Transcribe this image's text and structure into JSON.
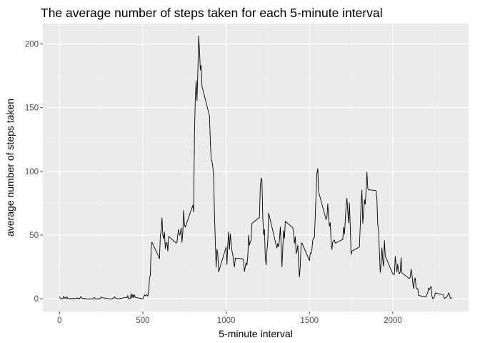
{
  "chart_data": {
    "type": "line",
    "title": "The average number of steps taken for each 5-minute interval",
    "xlabel": "5-minute interval",
    "ylabel": "average number of steps taken",
    "xlim": [
      -100,
      2455
    ],
    "ylim": [
      -10,
      216
    ],
    "x_ticks": [
      0,
      500,
      1000,
      1500,
      2000
    ],
    "x_tick_labels": [
      "0",
      "500",
      "1000",
      "1500",
      "2000"
    ],
    "y_ticks": [
      0,
      50,
      100,
      150,
      200
    ],
    "y_tick_labels": [
      "0",
      "50",
      "100",
      "150",
      "200"
    ],
    "grid": true,
    "colors": {
      "panel": "#ebebeb",
      "grid_major": "#ffffff",
      "line": "#000000"
    },
    "series": [
      {
        "points": [
          [
            0,
            1.7
          ],
          [
            5,
            0.3
          ],
          [
            10,
            0.1
          ],
          [
            15,
            0.2
          ],
          [
            20,
            0.1
          ],
          [
            25,
            2.1
          ],
          [
            30,
            0.5
          ],
          [
            35,
            0.9
          ],
          [
            40,
            0
          ],
          [
            45,
            1.5
          ],
          [
            50,
            0.3
          ],
          [
            55,
            0.1
          ],
          [
            100,
            0.3
          ],
          [
            105,
            0.7
          ],
          [
            110,
            0.2
          ],
          [
            115,
            0.3
          ],
          [
            120,
            0
          ],
          [
            125,
            1.1
          ],
          [
            130,
            1.8
          ],
          [
            135,
            0.2
          ],
          [
            140,
            0.2
          ],
          [
            145,
            0.4
          ],
          [
            150,
            0.3
          ],
          [
            155,
            0
          ],
          [
            200,
            0
          ],
          [
            205,
            0
          ],
          [
            210,
            1.1
          ],
          [
            215,
            0
          ],
          [
            220,
            0
          ],
          [
            225,
            0.1
          ],
          [
            230,
            0
          ],
          [
            235,
            0.2
          ],
          [
            240,
            0
          ],
          [
            245,
            0
          ],
          [
            250,
            1.5
          ],
          [
            255,
            0.9
          ],
          [
            300,
            0
          ],
          [
            305,
            0
          ],
          [
            310,
            0
          ],
          [
            315,
            0
          ],
          [
            320,
            0.2
          ],
          [
            325,
            0.6
          ],
          [
            330,
            1.6
          ],
          [
            335,
            0.6
          ],
          [
            340,
            0.5
          ],
          [
            345,
            0.1
          ],
          [
            350,
            0
          ],
          [
            355,
            0
          ],
          [
            400,
            1.2
          ],
          [
            405,
            0.9
          ],
          [
            410,
            2.6
          ],
          [
            415,
            0
          ],
          [
            420,
            0.3
          ],
          [
            425,
            0.4
          ],
          [
            430,
            4.1
          ],
          [
            435,
            0.7
          ],
          [
            440,
            3.5
          ],
          [
            445,
            0.8
          ],
          [
            450,
            3.1
          ],
          [
            455,
            1.1
          ],
          [
            500,
            0
          ],
          [
            505,
            1.6
          ],
          [
            510,
            3
          ],
          [
            515,
            2.2
          ],
          [
            520,
            3.3
          ],
          [
            525,
            3
          ],
          [
            530,
            2.1
          ],
          [
            535,
            6.1
          ],
          [
            540,
            16
          ],
          [
            545,
            18.3
          ],
          [
            550,
            39.5
          ],
          [
            555,
            44.5
          ],
          [
            600,
            31.5
          ],
          [
            605,
            49.3
          ],
          [
            610,
            53.8
          ],
          [
            615,
            63.5
          ],
          [
            620,
            50
          ],
          [
            625,
            47.1
          ],
          [
            630,
            52.2
          ],
          [
            635,
            39.3
          ],
          [
            640,
            44
          ],
          [
            645,
            44.2
          ],
          [
            650,
            37.4
          ],
          [
            655,
            49
          ],
          [
            700,
            43.8
          ],
          [
            705,
            44.4
          ],
          [
            710,
            50.5
          ],
          [
            715,
            54.5
          ],
          [
            720,
            49.9
          ],
          [
            725,
            50.9
          ],
          [
            730,
            55.7
          ],
          [
            735,
            44.3
          ],
          [
            740,
            52.3
          ],
          [
            745,
            69.5
          ],
          [
            750,
            57.8
          ],
          [
            755,
            56.2
          ],
          [
            800,
            73.4
          ],
          [
            805,
            68.2
          ],
          [
            810,
            129.4
          ],
          [
            815,
            157.5
          ],
          [
            820,
            171.2
          ],
          [
            825,
            155.4
          ],
          [
            830,
            177.3
          ],
          [
            835,
            206.2
          ],
          [
            840,
            195.9
          ],
          [
            845,
            179.6
          ],
          [
            850,
            183.4
          ],
          [
            855,
            167
          ],
          [
            900,
            143.5
          ],
          [
            905,
            124
          ],
          [
            910,
            109.1
          ],
          [
            915,
            108.1
          ],
          [
            920,
            103.7
          ],
          [
            925,
            95.9
          ],
          [
            930,
            66.2
          ],
          [
            935,
            45.2
          ],
          [
            940,
            24.8
          ],
          [
            945,
            38.8
          ],
          [
            950,
            34.98
          ],
          [
            955,
            21.1
          ],
          [
            1000,
            40.6
          ],
          [
            1005,
            26.98
          ],
          [
            1010,
            42.4
          ],
          [
            1015,
            52.7
          ],
          [
            1020,
            38.9
          ],
          [
            1025,
            50.8
          ],
          [
            1030,
            44.3
          ],
          [
            1035,
            37.4
          ],
          [
            1040,
            34.7
          ],
          [
            1045,
            28.3
          ],
          [
            1050,
            25.1
          ],
          [
            1055,
            31.9
          ],
          [
            1100,
            31.4
          ],
          [
            1105,
            29.7
          ],
          [
            1110,
            21.3
          ],
          [
            1115,
            25.5
          ],
          [
            1120,
            28.4
          ],
          [
            1125,
            26.5
          ],
          [
            1130,
            33.4
          ],
          [
            1135,
            49.98
          ],
          [
            1140,
            42
          ],
          [
            1145,
            44.6
          ],
          [
            1150,
            46
          ],
          [
            1155,
            59.2
          ],
          [
            1200,
            63.9
          ],
          [
            1205,
            87.7
          ],
          [
            1210,
            94.8
          ],
          [
            1215,
            92.8
          ],
          [
            1220,
            63.4
          ],
          [
            1225,
            50.2
          ],
          [
            1230,
            54.5
          ],
          [
            1235,
            32.4
          ],
          [
            1240,
            26.5
          ],
          [
            1245,
            37.7
          ],
          [
            1250,
            45.1
          ],
          [
            1255,
            67.3
          ],
          [
            1300,
            42.3
          ],
          [
            1305,
            39.9
          ],
          [
            1310,
            43.3
          ],
          [
            1315,
            40.98
          ],
          [
            1320,
            46.2
          ],
          [
            1325,
            56.4
          ],
          [
            1330,
            42.8
          ],
          [
            1335,
            25.1
          ],
          [
            1340,
            39.97
          ],
          [
            1345,
            53.5
          ],
          [
            1350,
            47.3
          ],
          [
            1355,
            60.8
          ],
          [
            1400,
            55.8
          ],
          [
            1405,
            51.96
          ],
          [
            1410,
            43.6
          ],
          [
            1415,
            48.7
          ],
          [
            1420,
            35.5
          ],
          [
            1425,
            37.6
          ],
          [
            1430,
            42
          ],
          [
            1435,
            27.5
          ],
          [
            1440,
            17.1
          ],
          [
            1445,
            26.1
          ],
          [
            1450,
            43.6
          ],
          [
            1455,
            43.8
          ],
          [
            1500,
            30
          ],
          [
            1505,
            36.1
          ],
          [
            1510,
            35.5
          ],
          [
            1515,
            38.8
          ],
          [
            1520,
            45.96
          ],
          [
            1525,
            47.8
          ],
          [
            1530,
            48.1
          ],
          [
            1535,
            65.3
          ],
          [
            1540,
            82.9
          ],
          [
            1545,
            98.7
          ],
          [
            1550,
            102.1
          ],
          [
            1555,
            84
          ],
          [
            1600,
            62.1
          ],
          [
            1605,
            64.1
          ],
          [
            1610,
            74.5
          ],
          [
            1615,
            63.2
          ],
          [
            1620,
            56.9
          ],
          [
            1625,
            59.8
          ],
          [
            1630,
            43.9
          ],
          [
            1635,
            38.6
          ],
          [
            1640,
            44.7
          ],
          [
            1645,
            45.5
          ],
          [
            1650,
            46.2
          ],
          [
            1655,
            43.7
          ],
          [
            1700,
            46.6
          ],
          [
            1705,
            56.3
          ],
          [
            1710,
            50.7
          ],
          [
            1715,
            61.2
          ],
          [
            1720,
            72.7
          ],
          [
            1725,
            78.9
          ],
          [
            1730,
            68.9
          ],
          [
            1735,
            59.7
          ],
          [
            1740,
            75.1
          ],
          [
            1745,
            56.5
          ],
          [
            1750,
            34.8
          ],
          [
            1755,
            37.5
          ],
          [
            1800,
            40.7
          ],
          [
            1805,
            58
          ],
          [
            1810,
            74.7
          ],
          [
            1815,
            85.3
          ],
          [
            1820,
            59.3
          ],
          [
            1825,
            67.8
          ],
          [
            1830,
            77.7
          ],
          [
            1835,
            74.2
          ],
          [
            1840,
            85.3
          ],
          [
            1845,
            99.5
          ],
          [
            1850,
            86.6
          ],
          [
            1855,
            85.6
          ],
          [
            1900,
            84.9
          ],
          [
            1905,
            77.8
          ],
          [
            1910,
            58
          ],
          [
            1915,
            53.4
          ],
          [
            1920,
            36.3
          ],
          [
            1925,
            20.7
          ],
          [
            1930,
            27.4
          ],
          [
            1935,
            40
          ],
          [
            1940,
            30.2
          ],
          [
            1945,
            25.5
          ],
          [
            1950,
            45.7
          ],
          [
            1955,
            33.5
          ],
          [
            2000,
            19.6
          ],
          [
            2005,
            19
          ],
          [
            2010,
            19.3
          ],
          [
            2015,
            33.3
          ],
          [
            2020,
            26.8
          ],
          [
            2025,
            21.2
          ],
          [
            2030,
            27.3
          ],
          [
            2035,
            21.3
          ],
          [
            2040,
            19.6
          ],
          [
            2045,
            21.3
          ],
          [
            2050,
            32.3
          ],
          [
            2055,
            20.2
          ],
          [
            2100,
            15.9
          ],
          [
            2105,
            17.2
          ],
          [
            2110,
            23.5
          ],
          [
            2115,
            19.2
          ],
          [
            2120,
            12.5
          ],
          [
            2125,
            8
          ],
          [
            2130,
            14.7
          ],
          [
            2135,
            16.3
          ],
          [
            2140,
            8.7
          ],
          [
            2145,
            7.8
          ],
          [
            2150,
            8.1
          ],
          [
            2155,
            2.6
          ],
          [
            2200,
            1.5
          ],
          [
            2205,
            3.7
          ],
          [
            2210,
            4.8
          ],
          [
            2215,
            8.5
          ],
          [
            2220,
            7.1
          ],
          [
            2225,
            8.7
          ],
          [
            2230,
            9.8
          ],
          [
            2235,
            2.2
          ],
          [
            2240,
            0.3
          ],
          [
            2245,
            0.1
          ],
          [
            2250,
            1.6
          ],
          [
            2255,
            4.6
          ],
          [
            2300,
            3.3
          ],
          [
            2305,
            2.8
          ],
          [
            2310,
            0
          ],
          [
            2315,
            0.8
          ],
          [
            2320,
            1
          ],
          [
            2325,
            1.6
          ],
          [
            2330,
            2.6
          ],
          [
            2335,
            4.7
          ],
          [
            2340,
            3.3
          ],
          [
            2345,
            0.6
          ],
          [
            2350,
            0.2
          ],
          [
            2355,
            1.1
          ]
        ]
      }
    ]
  }
}
